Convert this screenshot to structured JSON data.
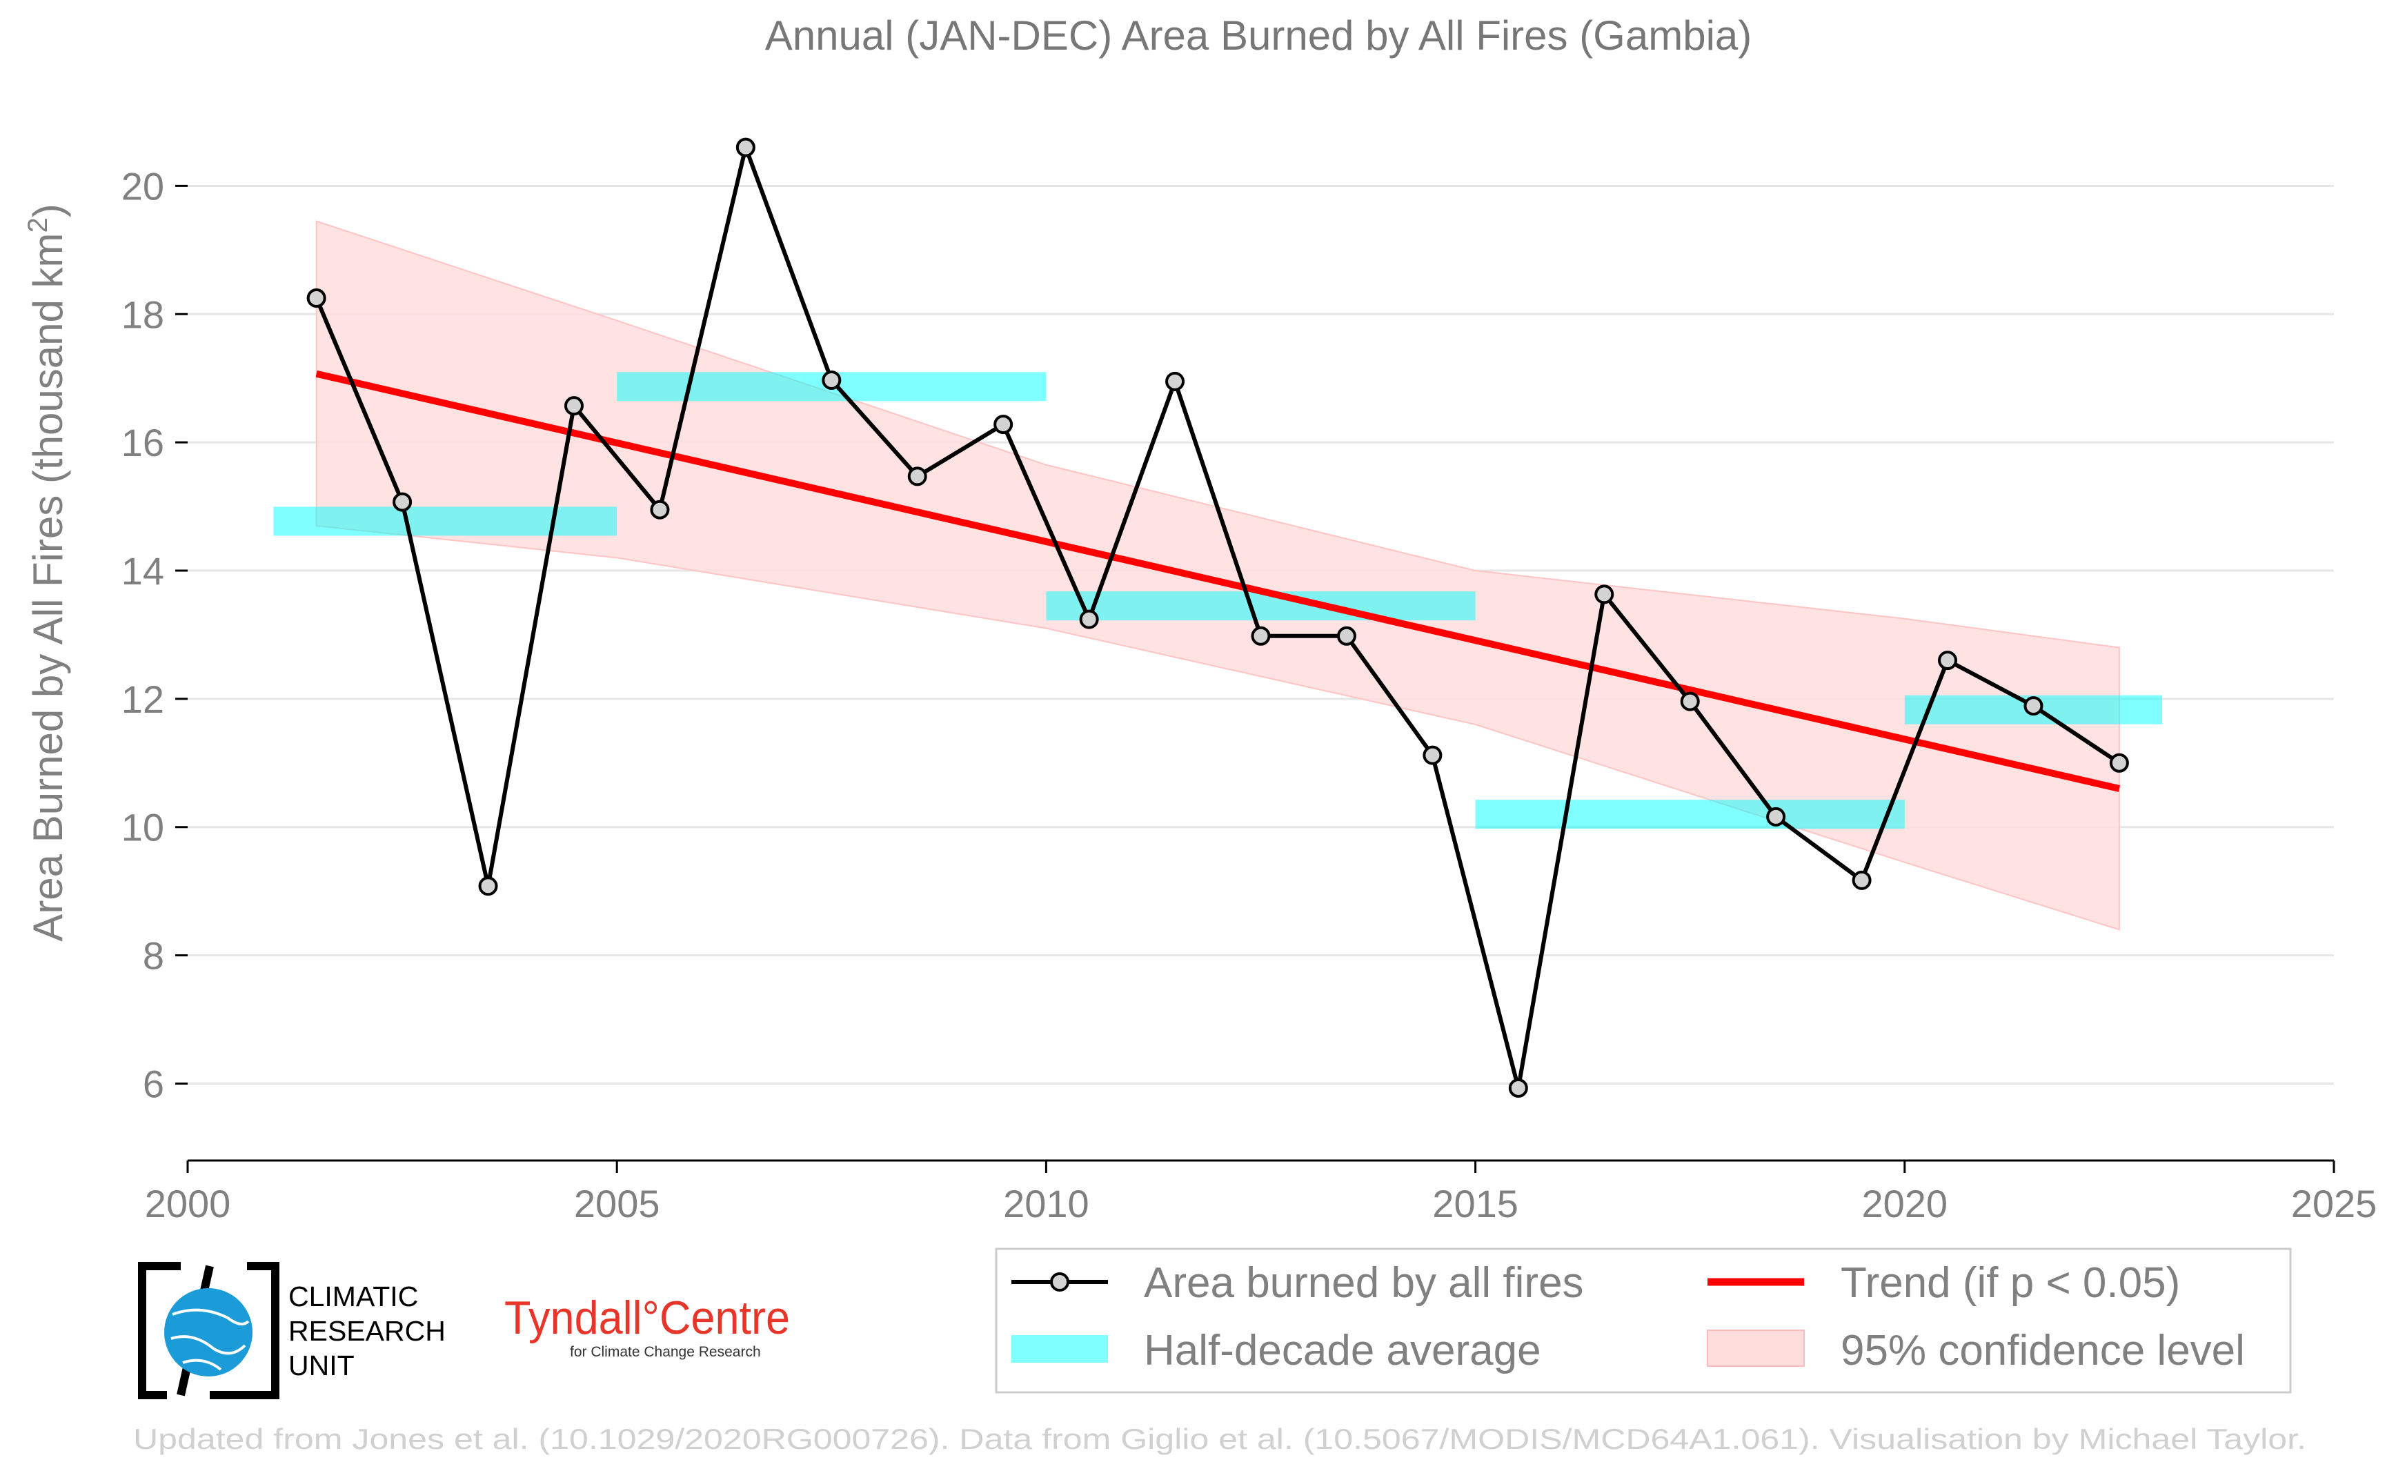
{
  "chart_data": {
    "type": "line",
    "title": "Annual (JAN-DEC) Area Burned by All Fires (Gambia)",
    "ylabel": "Area Burned by All Fires (thousand km",
    "ylabel_sup": "2",
    "ylabel_end": ")",
    "xlim": [
      2000,
      2025
    ],
    "ylim": [
      4.8,
      21.5
    ],
    "x_ticks": [
      "2000",
      "2005",
      "2010",
      "2015",
      "2020",
      "2025"
    ],
    "y_ticks": [
      "6",
      "8",
      "10",
      "12",
      "14",
      "16",
      "18",
      "20"
    ],
    "grid": "horizontal",
    "series": [
      {
        "name": "Area burned by all fires",
        "color": "#000000",
        "x": [
          2001.5,
          2002.5,
          2003.5,
          2004.5,
          2005.5,
          2006.5,
          2007.5,
          2008.5,
          2009.5,
          2010.5,
          2011.5,
          2012.5,
          2013.5,
          2014.5,
          2015.5,
          2016.5,
          2017.5,
          2018.5,
          2019.5,
          2020.5,
          2021.5,
          2022.5
        ],
        "values": [
          18.25,
          15.07,
          9.08,
          16.57,
          14.95,
          20.6,
          16.97,
          15.47,
          16.28,
          13.24,
          16.95,
          12.98,
          12.98,
          11.12,
          5.93,
          13.63,
          11.96,
          10.16,
          9.17,
          12.6,
          11.89,
          11.0
        ]
      }
    ],
    "half_decade_average": {
      "name": "Half-decade average",
      "color": "#00ffff",
      "segments": [
        {
          "x0": 2001,
          "x1": 2005,
          "value": 14.77
        },
        {
          "x0": 2005,
          "x1": 2010,
          "value": 16.87
        },
        {
          "x0": 2010,
          "x1": 2015,
          "value": 13.45
        },
        {
          "x0": 2015,
          "x1": 2020,
          "value": 10.2
        },
        {
          "x0": 2020,
          "x1": 2023,
          "value": 11.83
        }
      ]
    },
    "trend": {
      "name": "Trend (if p < 0.05)",
      "color": "#ff0000",
      "x": [
        2001.5,
        2022.5
      ],
      "values": [
        17.07,
        10.6
      ]
    },
    "confidence": {
      "name": "95% confidence level",
      "color": "#ffdddd",
      "x": [
        2001.5,
        2005,
        2010,
        2015,
        2020,
        2022.5
      ],
      "upper": [
        19.45,
        17.9,
        15.65,
        14.0,
        13.25,
        12.8
      ],
      "lower": [
        14.7,
        14.2,
        13.1,
        11.6,
        9.45,
        8.4
      ]
    },
    "legend_position": "bottom-right"
  },
  "legend": {
    "items": [
      "Area burned by all fires",
      "Half-decade average",
      "Trend (if p < 0.05)",
      "95% confidence level"
    ]
  },
  "logos": {
    "cru_lines": [
      "CLIMATIC",
      "RESEARCH",
      "UNIT"
    ],
    "tyndall_main": "Tyndall°Centre",
    "tyndall_sub": "for Climate Change Research"
  },
  "footer": "Updated from Jones et al. (10.1029/2020RG000726). Data from Giglio et al. (10.5067/MODIS/MCD64A1.061). Visualisation by Michael Taylor."
}
